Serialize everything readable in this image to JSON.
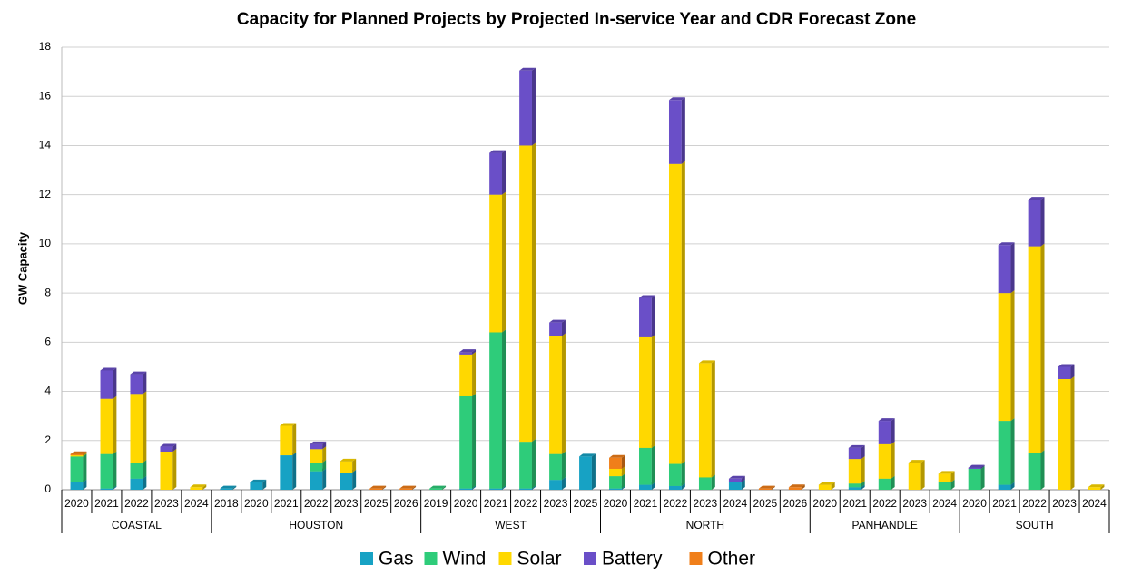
{
  "chart_data": {
    "type": "bar",
    "stacked": true,
    "title": "Capacity for Planned Projects by Projected In-service Year and CDR Forecast Zone",
    "y_label": "GW Capacity",
    "groups": [
      {
        "name": "COASTAL",
        "categories": [
          "2020",
          "2021",
          "2022",
          "2023",
          "2024"
        ]
      },
      {
        "name": "HOUSTON",
        "categories": [
          "2018",
          "2020",
          "2021",
          "2022",
          "2023",
          "2025",
          "2026"
        ]
      },
      {
        "name": "WEST",
        "categories": [
          "2019",
          "2020",
          "2021",
          "2022",
          "2023",
          "2025"
        ]
      },
      {
        "name": "NORTH",
        "categories": [
          "2020",
          "2021",
          "2022",
          "2023",
          "2024",
          "2025",
          "2026"
        ]
      },
      {
        "name": "PANHANDLE",
        "categories": [
          "2020",
          "2021",
          "2022",
          "2023",
          "2024"
        ]
      },
      {
        "name": "SOUTH",
        "categories": [
          "2020",
          "2021",
          "2022",
          "2023",
          "2024"
        ]
      }
    ],
    "series": [
      {
        "name": "Gas",
        "color": "#17a2c4",
        "values": [
          0.3,
          0.05,
          0.45,
          null,
          null,
          0.05,
          0.3,
          1.4,
          0.75,
          0.7,
          null,
          null,
          null,
          0.05,
          0.05,
          0.05,
          0.4,
          1.35,
          0.05,
          0.2,
          0.15,
          null,
          0.3,
          null,
          null,
          null,
          0.1,
          null,
          null,
          null,
          null,
          0.2,
          null,
          null,
          null
        ]
      },
      {
        "name": "Wind",
        "color": "#2ecc7a",
        "values": [
          1.05,
          1.4,
          0.65,
          null,
          null,
          null,
          null,
          null,
          0.35,
          null,
          null,
          null,
          0.05,
          3.75,
          6.35,
          1.9,
          1.05,
          null,
          0.5,
          1.5,
          0.9,
          0.5,
          null,
          null,
          null,
          null,
          0.15,
          0.45,
          null,
          0.3,
          0.85,
          2.6,
          1.5,
          null,
          null
        ]
      },
      {
        "name": "Solar",
        "color": "#ffd800",
        "values": [
          0.05,
          2.25,
          2.8,
          1.55,
          0.1,
          null,
          null,
          1.2,
          0.55,
          0.45,
          null,
          null,
          null,
          1.7,
          5.6,
          12.05,
          4.8,
          null,
          0.3,
          4.5,
          12.2,
          4.65,
          null,
          null,
          null,
          0.2,
          1.0,
          1.4,
          1.1,
          0.35,
          null,
          5.2,
          8.4,
          4.5,
          0.1
        ]
      },
      {
        "name": "Battery",
        "color": "#6a4fc8",
        "values": [
          null,
          1.15,
          0.8,
          0.2,
          null,
          null,
          null,
          null,
          0.2,
          null,
          null,
          null,
          null,
          0.1,
          1.7,
          3.05,
          0.55,
          null,
          null,
          1.6,
          2.6,
          null,
          0.15,
          null,
          null,
          null,
          0.45,
          0.95,
          null,
          null,
          0.05,
          1.95,
          1.9,
          0.5,
          null
        ]
      },
      {
        "name": "Other",
        "color": "#f07f1a",
        "values": [
          0.05,
          null,
          null,
          null,
          null,
          null,
          null,
          null,
          null,
          null,
          0.05,
          0.05,
          null,
          null,
          null,
          null,
          null,
          null,
          0.45,
          null,
          null,
          null,
          null,
          0.05,
          0.1,
          null,
          null,
          null,
          null,
          null,
          null,
          null,
          null,
          null,
          null
        ]
      }
    ],
    "ylim": [
      0,
      18
    ],
    "yticks": [
      0,
      2,
      4,
      6,
      8,
      10,
      12,
      14,
      16,
      18
    ],
    "grid": true,
    "legend": "bottom"
  }
}
